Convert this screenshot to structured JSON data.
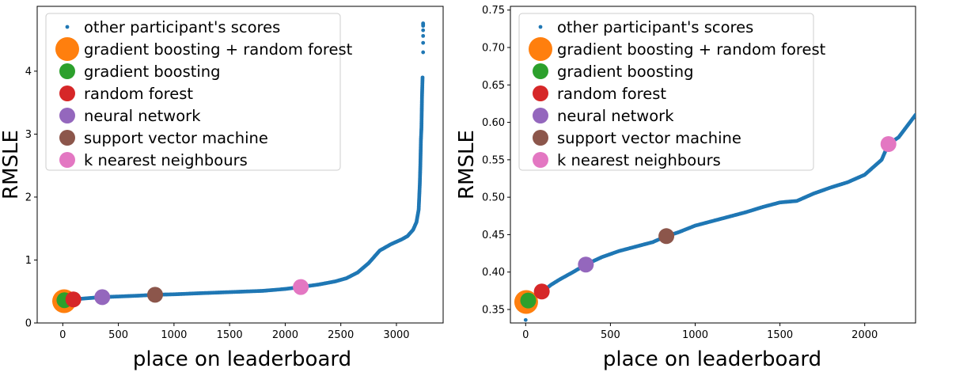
{
  "chart_data": [
    {
      "type": "scatter",
      "xlabel": "place on leaderboard",
      "ylabel": "RMSLE",
      "xlim": [
        -230,
        3420
      ],
      "ylim": [
        0,
        5.03
      ],
      "xticks": [
        0,
        500,
        1000,
        1500,
        2000,
        2500,
        3000
      ],
      "yticks": [
        0,
        1,
        2,
        3,
        4
      ],
      "legend_position": "upper-left",
      "background_curve": {
        "name": "other participant's scores",
        "color": "#1f77b4",
        "x": [
          0,
          20,
          100,
          200,
          350,
          500,
          700,
          830,
          1000,
          1200,
          1500,
          1800,
          2000,
          2140,
          2300,
          2450,
          2550,
          2650,
          2750,
          2850,
          2950,
          3050,
          3100,
          3150,
          3180,
          3200,
          3210,
          3215,
          3220,
          3225,
          3230,
          3235
        ],
        "y": [
          0.34,
          0.36,
          0.375,
          0.39,
          0.41,
          0.42,
          0.435,
          0.448,
          0.455,
          0.47,
          0.49,
          0.51,
          0.54,
          0.571,
          0.61,
          0.66,
          0.71,
          0.8,
          0.95,
          1.15,
          1.25,
          1.33,
          1.38,
          1.48,
          1.6,
          1.8,
          2.2,
          2.5,
          2.9,
          3.1,
          3.6,
          3.9
        ]
      },
      "outliers": {
        "x": [
          3240,
          3240,
          3240,
          3240,
          3240,
          3240,
          3240,
          3240
        ],
        "y": [
          4.3,
          4.45,
          4.56,
          4.65,
          4.72,
          4.74,
          4.75,
          4.76
        ]
      },
      "series": [
        {
          "name": "gradient boosting + random forest",
          "x": 12,
          "y": 0.346,
          "color": "#ff7f0e",
          "size": 15
        },
        {
          "name": "gradient boosting",
          "x": 15,
          "y": 0.362,
          "color": "#2ca02c",
          "size": 10
        },
        {
          "name": "random forest",
          "x": 95,
          "y": 0.374,
          "color": "#d62728",
          "size": 10
        },
        {
          "name": "neural network",
          "x": 355,
          "y": 0.41,
          "color": "#9467bd",
          "size": 10
        },
        {
          "name": "support vector machine",
          "x": 830,
          "y": 0.448,
          "color": "#8c564b",
          "size": 10
        },
        {
          "name": "k nearest neighbours",
          "x": 2140,
          "y": 0.571,
          "color": "#e377c2",
          "size": 10
        }
      ]
    },
    {
      "type": "scatter",
      "xlabel": "place on leaderboard",
      "ylabel": "RMSLE",
      "xlim": [
        -90,
        2300
      ],
      "ylim": [
        0.332,
        0.755
      ],
      "xticks": [
        0,
        500,
        1000,
        1500,
        2000
      ],
      "yticks": [
        0.35,
        0.4,
        0.45,
        0.5,
        0.55,
        0.6,
        0.65,
        0.7,
        0.75
      ],
      "legend_position": "upper-left",
      "background_curve": {
        "name": "other participant's scores",
        "color": "#1f77b4",
        "x": [
          0,
          20,
          60,
          100,
          150,
          200,
          280,
          355,
          450,
          550,
          650,
          750,
          830,
          900,
          1000,
          1100,
          1200,
          1300,
          1400,
          1500,
          1600,
          1700,
          1800,
          1900,
          2000,
          2100,
          2140,
          2200,
          2250,
          2300
        ],
        "y": [
          0.36,
          0.362,
          0.368,
          0.374,
          0.383,
          0.39,
          0.4,
          0.41,
          0.42,
          0.428,
          0.434,
          0.44,
          0.448,
          0.453,
          0.462,
          0.468,
          0.474,
          0.48,
          0.487,
          0.493,
          0.495,
          0.505,
          0.513,
          0.52,
          0.53,
          0.55,
          0.571,
          0.58,
          0.595,
          0.61
        ]
      },
      "outliers": {
        "x": [
          0
        ],
        "y": [
          0.336
        ]
      },
      "series": [
        {
          "name": "gradient boosting + random forest",
          "x": 3,
          "y": 0.36,
          "color": "#ff7f0e",
          "size": 15
        },
        {
          "name": "gradient boosting",
          "x": 15,
          "y": 0.362,
          "color": "#2ca02c",
          "size": 10
        },
        {
          "name": "random forest",
          "x": 95,
          "y": 0.374,
          "color": "#d62728",
          "size": 10
        },
        {
          "name": "neural network",
          "x": 355,
          "y": 0.41,
          "color": "#9467bd",
          "size": 10
        },
        {
          "name": "support vector machine",
          "x": 830,
          "y": 0.448,
          "color": "#8c564b",
          "size": 10
        },
        {
          "name": "k nearest neighbours",
          "x": 2140,
          "y": 0.571,
          "color": "#e377c2",
          "size": 10
        }
      ]
    }
  ]
}
